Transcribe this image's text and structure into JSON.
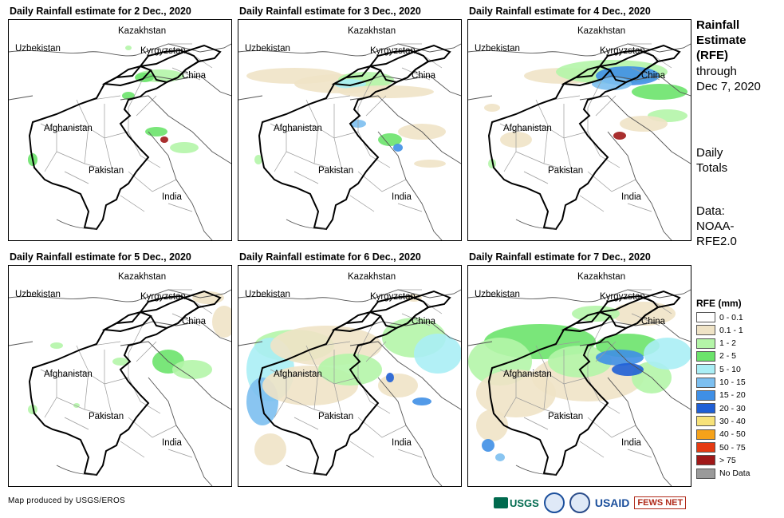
{
  "panels": [
    {
      "title": "Daily Rainfall estimate for 2 Dec., 2020"
    },
    {
      "title": "Daily Rainfall estimate for 3 Dec., 2020"
    },
    {
      "title": "Daily Rainfall estimate for 4 Dec., 2020"
    },
    {
      "title": "Daily Rainfall estimate for 5 Dec., 2020"
    },
    {
      "title": "Daily Rainfall estimate for 6 Dec., 2020"
    },
    {
      "title": "Daily Rainfall estimate for 7 Dec., 2020"
    }
  ],
  "place_labels": {
    "kazakhstan": "Kazakhstan",
    "uzbekistan": "Uzbekistan",
    "kyrgyzstan": "Kyrgyzstan",
    "china": "China",
    "afghanistan": "Afghanistan",
    "pakistan": "Pakistan",
    "india": "India"
  },
  "side": {
    "heading_line1": "Rainfall",
    "heading_line2": "Estimate",
    "heading_line3": "(RFE)",
    "through": "through",
    "date": "Dec 7, 2020",
    "totals_line1": "Daily",
    "totals_line2": "Totals",
    "data_line1": "Data:",
    "data_line2": "NOAA-",
    "data_line3": "RFE2.0"
  },
  "legend": {
    "title": "RFE (mm)",
    "items": [
      {
        "label": "0 - 0.1",
        "color": "#ffffff"
      },
      {
        "label": "0.1 - 1",
        "color": "#efe3c6"
      },
      {
        "label": "1 - 2",
        "color": "#b4f5a8"
      },
      {
        "label": "2 - 5",
        "color": "#6be36b"
      },
      {
        "label": "5 - 10",
        "color": "#aaeef5"
      },
      {
        "label": "10 - 15",
        "color": "#7cbff0"
      },
      {
        "label": "15 - 20",
        "color": "#3f8fe6"
      },
      {
        "label": "20 - 30",
        "color": "#1f5fd6"
      },
      {
        "label": "30 - 40",
        "color": "#f7e27a"
      },
      {
        "label": "40 - 50",
        "color": "#f5a21a"
      },
      {
        "label": "50 - 75",
        "color": "#e53a12"
      },
      {
        "label": "> 75",
        "color": "#a01818"
      },
      {
        "label": "No Data",
        "color": "#9a9a9a"
      }
    ]
  },
  "footer": {
    "credit": "Map produced by USGS/EROS"
  },
  "logos": {
    "usgs": "USGS",
    "usaid": "USAID",
    "fews": "FEWS NET"
  }
}
